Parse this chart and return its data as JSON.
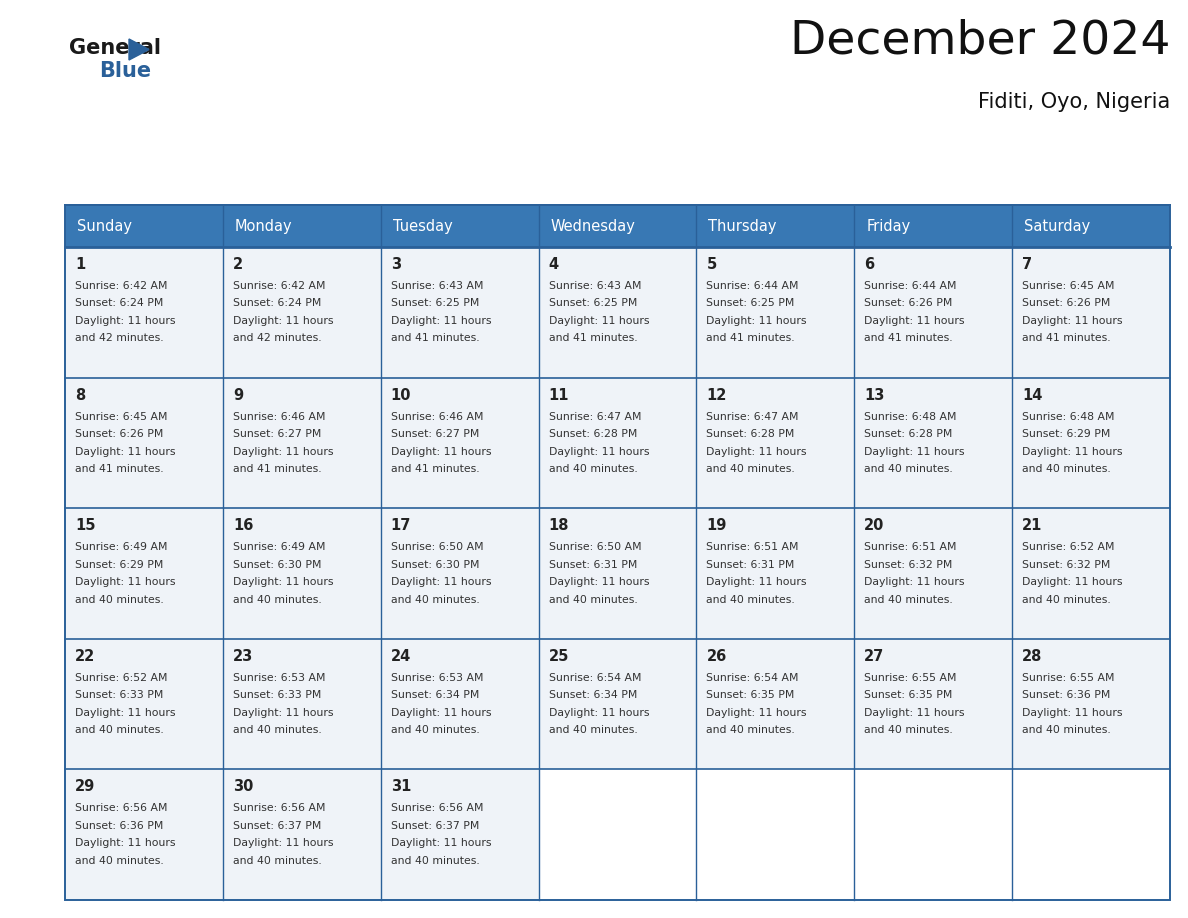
{
  "title": "December 2024",
  "subtitle": "Fiditi, Oyo, Nigeria",
  "days_of_week": [
    "Sunday",
    "Monday",
    "Tuesday",
    "Wednesday",
    "Thursday",
    "Friday",
    "Saturday"
  ],
  "header_bg": "#3878b4",
  "header_text": "#ffffff",
  "row_bg": "#eff3f8",
  "border_color": "#2a6099",
  "day_number_color": "#222222",
  "cell_text_color": "#333333",
  "logo_general_color": "#1a1a1a",
  "logo_blue_color": "#2a6099",
  "logo_triangle_color": "#2a6099",
  "calendar_data": [
    {
      "day": 1,
      "col": 0,
      "row": 0,
      "sunrise": "6:42 AM",
      "sunset": "6:24 PM",
      "daylight_hours": 11,
      "daylight_mins": 42
    },
    {
      "day": 2,
      "col": 1,
      "row": 0,
      "sunrise": "6:42 AM",
      "sunset": "6:24 PM",
      "daylight_hours": 11,
      "daylight_mins": 42
    },
    {
      "day": 3,
      "col": 2,
      "row": 0,
      "sunrise": "6:43 AM",
      "sunset": "6:25 PM",
      "daylight_hours": 11,
      "daylight_mins": 41
    },
    {
      "day": 4,
      "col": 3,
      "row": 0,
      "sunrise": "6:43 AM",
      "sunset": "6:25 PM",
      "daylight_hours": 11,
      "daylight_mins": 41
    },
    {
      "day": 5,
      "col": 4,
      "row": 0,
      "sunrise": "6:44 AM",
      "sunset": "6:25 PM",
      "daylight_hours": 11,
      "daylight_mins": 41
    },
    {
      "day": 6,
      "col": 5,
      "row": 0,
      "sunrise": "6:44 AM",
      "sunset": "6:26 PM",
      "daylight_hours": 11,
      "daylight_mins": 41
    },
    {
      "day": 7,
      "col": 6,
      "row": 0,
      "sunrise": "6:45 AM",
      "sunset": "6:26 PM",
      "daylight_hours": 11,
      "daylight_mins": 41
    },
    {
      "day": 8,
      "col": 0,
      "row": 1,
      "sunrise": "6:45 AM",
      "sunset": "6:26 PM",
      "daylight_hours": 11,
      "daylight_mins": 41
    },
    {
      "day": 9,
      "col": 1,
      "row": 1,
      "sunrise": "6:46 AM",
      "sunset": "6:27 PM",
      "daylight_hours": 11,
      "daylight_mins": 41
    },
    {
      "day": 10,
      "col": 2,
      "row": 1,
      "sunrise": "6:46 AM",
      "sunset": "6:27 PM",
      "daylight_hours": 11,
      "daylight_mins": 41
    },
    {
      "day": 11,
      "col": 3,
      "row": 1,
      "sunrise": "6:47 AM",
      "sunset": "6:28 PM",
      "daylight_hours": 11,
      "daylight_mins": 40
    },
    {
      "day": 12,
      "col": 4,
      "row": 1,
      "sunrise": "6:47 AM",
      "sunset": "6:28 PM",
      "daylight_hours": 11,
      "daylight_mins": 40
    },
    {
      "day": 13,
      "col": 5,
      "row": 1,
      "sunrise": "6:48 AM",
      "sunset": "6:28 PM",
      "daylight_hours": 11,
      "daylight_mins": 40
    },
    {
      "day": 14,
      "col": 6,
      "row": 1,
      "sunrise": "6:48 AM",
      "sunset": "6:29 PM",
      "daylight_hours": 11,
      "daylight_mins": 40
    },
    {
      "day": 15,
      "col": 0,
      "row": 2,
      "sunrise": "6:49 AM",
      "sunset": "6:29 PM",
      "daylight_hours": 11,
      "daylight_mins": 40
    },
    {
      "day": 16,
      "col": 1,
      "row": 2,
      "sunrise": "6:49 AM",
      "sunset": "6:30 PM",
      "daylight_hours": 11,
      "daylight_mins": 40
    },
    {
      "day": 17,
      "col": 2,
      "row": 2,
      "sunrise": "6:50 AM",
      "sunset": "6:30 PM",
      "daylight_hours": 11,
      "daylight_mins": 40
    },
    {
      "day": 18,
      "col": 3,
      "row": 2,
      "sunrise": "6:50 AM",
      "sunset": "6:31 PM",
      "daylight_hours": 11,
      "daylight_mins": 40
    },
    {
      "day": 19,
      "col": 4,
      "row": 2,
      "sunrise": "6:51 AM",
      "sunset": "6:31 PM",
      "daylight_hours": 11,
      "daylight_mins": 40
    },
    {
      "day": 20,
      "col": 5,
      "row": 2,
      "sunrise": "6:51 AM",
      "sunset": "6:32 PM",
      "daylight_hours": 11,
      "daylight_mins": 40
    },
    {
      "day": 21,
      "col": 6,
      "row": 2,
      "sunrise": "6:52 AM",
      "sunset": "6:32 PM",
      "daylight_hours": 11,
      "daylight_mins": 40
    },
    {
      "day": 22,
      "col": 0,
      "row": 3,
      "sunrise": "6:52 AM",
      "sunset": "6:33 PM",
      "daylight_hours": 11,
      "daylight_mins": 40
    },
    {
      "day": 23,
      "col": 1,
      "row": 3,
      "sunrise": "6:53 AM",
      "sunset": "6:33 PM",
      "daylight_hours": 11,
      "daylight_mins": 40
    },
    {
      "day": 24,
      "col": 2,
      "row": 3,
      "sunrise": "6:53 AM",
      "sunset": "6:34 PM",
      "daylight_hours": 11,
      "daylight_mins": 40
    },
    {
      "day": 25,
      "col": 3,
      "row": 3,
      "sunrise": "6:54 AM",
      "sunset": "6:34 PM",
      "daylight_hours": 11,
      "daylight_mins": 40
    },
    {
      "day": 26,
      "col": 4,
      "row": 3,
      "sunrise": "6:54 AM",
      "sunset": "6:35 PM",
      "daylight_hours": 11,
      "daylight_mins": 40
    },
    {
      "day": 27,
      "col": 5,
      "row": 3,
      "sunrise": "6:55 AM",
      "sunset": "6:35 PM",
      "daylight_hours": 11,
      "daylight_mins": 40
    },
    {
      "day": 28,
      "col": 6,
      "row": 3,
      "sunrise": "6:55 AM",
      "sunset": "6:36 PM",
      "daylight_hours": 11,
      "daylight_mins": 40
    },
    {
      "day": 29,
      "col": 0,
      "row": 4,
      "sunrise": "6:56 AM",
      "sunset": "6:36 PM",
      "daylight_hours": 11,
      "daylight_mins": 40
    },
    {
      "day": 30,
      "col": 1,
      "row": 4,
      "sunrise": "6:56 AM",
      "sunset": "6:37 PM",
      "daylight_hours": 11,
      "daylight_mins": 40
    },
    {
      "day": 31,
      "col": 2,
      "row": 4,
      "sunrise": "6:56 AM",
      "sunset": "6:37 PM",
      "daylight_hours": 11,
      "daylight_mins": 40
    }
  ],
  "num_rows": 5,
  "num_cols": 7,
  "fig_width": 11.88,
  "fig_height": 9.18,
  "dpi": 100
}
